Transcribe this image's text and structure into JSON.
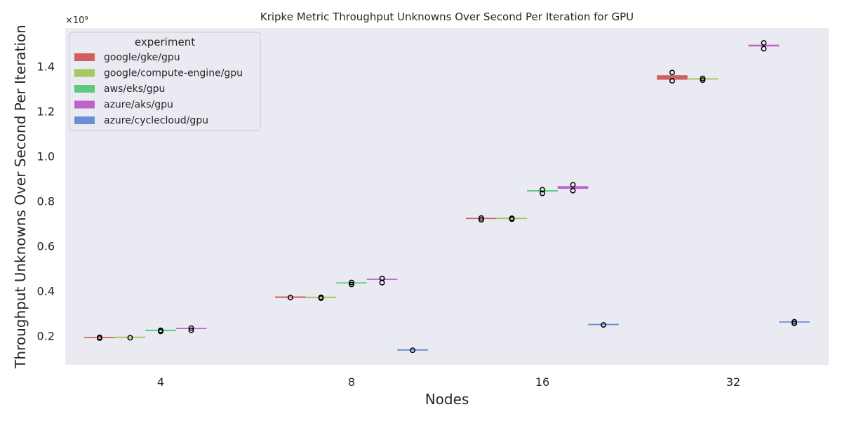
{
  "chart_data": {
    "type": "box",
    "title": "Kripke Metric Throughput Unknowns Over Second Per Iteration for GPU",
    "xlabel": "Nodes",
    "ylabel": "Throughput Unknowns Over Second Per Iteration",
    "y_offset_label": "×10⁹",
    "categories": [
      "4",
      "8",
      "16",
      "32"
    ],
    "ylim": [
      0.07,
      1.57
    ],
    "yticks": [
      0.2,
      0.4,
      0.6,
      0.8,
      1.0,
      1.2,
      1.4
    ],
    "ytick_labels": [
      "0.2",
      "0.4",
      "0.6",
      "0.8",
      "1.0",
      "1.2",
      "1.4"
    ],
    "grid": false,
    "legend": {
      "title": "experiment",
      "position": "top-left"
    },
    "series": [
      {
        "name": "google/gke/gpu",
        "color": "#d0605e",
        "points": [
          {
            "category": "4",
            "q1": 0.19,
            "median": 0.191,
            "q3": 0.192,
            "outliers": [
              0.189,
              0.193
            ]
          },
          {
            "category": "8",
            "q1": 0.37,
            "median": 0.37,
            "q3": 0.37,
            "outliers": [
              0.37
            ]
          },
          {
            "category": "16",
            "q1": 0.72,
            "median": 0.721,
            "q3": 0.722,
            "outliers": [
              0.716,
              0.724
            ]
          },
          {
            "category": "32",
            "q1": 1.34,
            "median": 1.35,
            "q3": 1.36,
            "outliers": [
              1.335,
              1.372
            ]
          }
        ]
      },
      {
        "name": "google/compute-engine/gpu",
        "color": "#a6c85f",
        "points": [
          {
            "category": "4",
            "q1": 0.191,
            "median": 0.191,
            "q3": 0.191,
            "outliers": [
              0.191
            ]
          },
          {
            "category": "8",
            "q1": 0.369,
            "median": 0.369,
            "q3": 0.369,
            "outliers": [
              0.367,
              0.371
            ]
          },
          {
            "category": "16",
            "q1": 0.721,
            "median": 0.721,
            "q3": 0.721,
            "outliers": [
              0.719,
              0.723
            ]
          },
          {
            "category": "32",
            "q1": 1.342,
            "median": 1.342,
            "q3": 1.342,
            "outliers": [
              1.338,
              1.346
            ]
          }
        ]
      },
      {
        "name": "aws/eks/gpu",
        "color": "#5fc87f",
        "points": [
          {
            "category": "4",
            "q1": 0.222,
            "median": 0.222,
            "q3": 0.222,
            "outliers": [
              0.219,
              0.224
            ]
          },
          {
            "category": "8",
            "q1": 0.433,
            "median": 0.434,
            "q3": 0.435,
            "outliers": [
              0.428,
              0.437
            ]
          },
          {
            "category": "16",
            "q1": 0.842,
            "median": 0.845,
            "q3": 0.848,
            "outliers": [
              0.834,
              0.85
            ]
          }
        ]
      },
      {
        "name": "azure/aks/gpu",
        "color": "#c062cc",
        "points": [
          {
            "category": "4",
            "q1": 0.23,
            "median": 0.231,
            "q3": 0.232,
            "outliers": [
              0.224,
              0.234
            ]
          },
          {
            "category": "8",
            "q1": 0.449,
            "median": 0.45,
            "q3": 0.451,
            "outliers": [
              0.436,
              0.455
            ]
          },
          {
            "category": "16",
            "q1": 0.854,
            "median": 0.86,
            "q3": 0.866,
            "outliers": [
              0.846,
              0.872
            ]
          },
          {
            "category": "32",
            "q1": 1.488,
            "median": 1.492,
            "q3": 1.496,
            "outliers": [
              1.478,
              1.504
            ]
          }
        ]
      },
      {
        "name": "azure/cyclecloud/gpu",
        "color": "#6a8fd6",
        "points": [
          {
            "category": "8",
            "q1": 0.135,
            "median": 0.135,
            "q3": 0.135,
            "outliers": [
              0.135
            ]
          },
          {
            "category": "16",
            "q1": 0.248,
            "median": 0.248,
            "q3": 0.248,
            "outliers": [
              0.248
            ]
          },
          {
            "category": "32",
            "q1": 0.259,
            "median": 0.26,
            "q3": 0.261,
            "outliers": [
              0.255,
              0.262
            ]
          }
        ]
      }
    ]
  }
}
